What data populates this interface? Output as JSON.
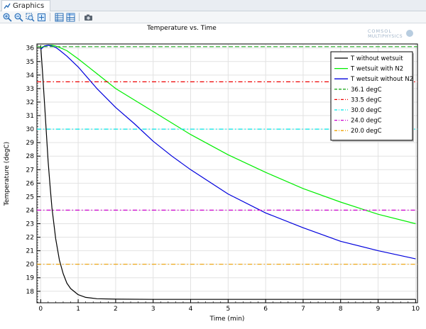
{
  "window": {
    "tab_title": "Graphics"
  },
  "toolbar": {
    "buttons": [
      "zoom-in-icon",
      "zoom-out-icon",
      "zoom-box-icon",
      "zoom-extents-icon",
      "axis-settings-icon",
      "table-icon",
      "camera-icon"
    ]
  },
  "logo": {
    "line1": "COMSOL",
    "line2": "MULTIPHYSICS"
  },
  "chart_data": {
    "type": "line",
    "title": "Temperature vs. Time",
    "xlabel": "Time (min)",
    "ylabel": "Temperature (degC)",
    "xlim": [
      -0.1,
      10.05
    ],
    "ylim": [
      17.15,
      36.3
    ],
    "xticks": [
      0,
      1,
      2,
      3,
      4,
      5,
      6,
      7,
      8,
      9,
      10
    ],
    "yticks": [
      18,
      19,
      20,
      21,
      22,
      23,
      24,
      25,
      26,
      27,
      28,
      29,
      30,
      31,
      32,
      33,
      34,
      35,
      36
    ],
    "grid": true,
    "legend_position": "top-right",
    "series": [
      {
        "name": "T without wetsuit",
        "color": "#000000",
        "style": "solid",
        "x": [
          0,
          0.05,
          0.1,
          0.15,
          0.2,
          0.25,
          0.3,
          0.4,
          0.5,
          0.6,
          0.7,
          0.8,
          1.0,
          1.2,
          1.5,
          2,
          3,
          4,
          5,
          6,
          7,
          8,
          9,
          10
        ],
        "y": [
          36.2,
          34.2,
          32.0,
          29.8,
          27.6,
          25.8,
          24.2,
          21.9,
          20.3,
          19.3,
          18.6,
          18.2,
          17.75,
          17.55,
          17.45,
          17.42,
          17.4,
          17.4,
          17.4,
          17.4,
          17.4,
          17.4,
          17.4,
          17.4
        ]
      },
      {
        "name": "T wetsuit with N2",
        "color": "#00ee00",
        "style": "solid",
        "x": [
          0,
          0.1,
          0.2,
          0.3,
          0.4,
          0.5,
          0.7,
          1,
          1.5,
          2,
          3,
          4,
          5,
          6,
          7,
          8,
          9,
          10
        ],
        "y": [
          36.0,
          36.15,
          36.2,
          36.2,
          36.15,
          36.05,
          35.8,
          35.2,
          34.1,
          33.0,
          31.3,
          29.6,
          28.1,
          26.8,
          25.6,
          24.6,
          23.7,
          23.0
        ]
      },
      {
        "name": "T wetsuit without N2",
        "color": "#0000dd",
        "style": "solid",
        "x": [
          0,
          0.1,
          0.2,
          0.3,
          0.4,
          0.5,
          0.7,
          1,
          1.5,
          2,
          2.5,
          3,
          3.5,
          4,
          5,
          6,
          7,
          8,
          9,
          10
        ],
        "y": [
          35.9,
          36.15,
          36.2,
          36.15,
          36.05,
          35.85,
          35.4,
          34.6,
          33.0,
          31.6,
          30.4,
          29.1,
          28.0,
          27.0,
          25.2,
          23.8,
          22.7,
          21.7,
          21.0,
          20.4
        ]
      },
      {
        "name": "36.1 degC",
        "color": "#22aa22",
        "style": "dashed",
        "x": [
          -0.1,
          10.05
        ],
        "y": [
          36.1,
          36.1
        ]
      },
      {
        "name": "33.5 degC",
        "color": "#ee0000",
        "style": "dashdot",
        "x": [
          -0.1,
          10.05
        ],
        "y": [
          33.5,
          33.5
        ]
      },
      {
        "name": "30.0 degC",
        "color": "#00e5e5",
        "style": "dashdot",
        "x": [
          -0.1,
          10.05
        ],
        "y": [
          30.0,
          30.0
        ]
      },
      {
        "name": "24.0 degC",
        "color": "#cc00cc",
        "style": "dashdot",
        "x": [
          -0.1,
          10.05
        ],
        "y": [
          24.0,
          24.0
        ]
      },
      {
        "name": "20.0 degC",
        "color": "#eea000",
        "style": "dashdot",
        "x": [
          -0.1,
          10.05
        ],
        "y": [
          20.0,
          20.0
        ]
      }
    ]
  }
}
